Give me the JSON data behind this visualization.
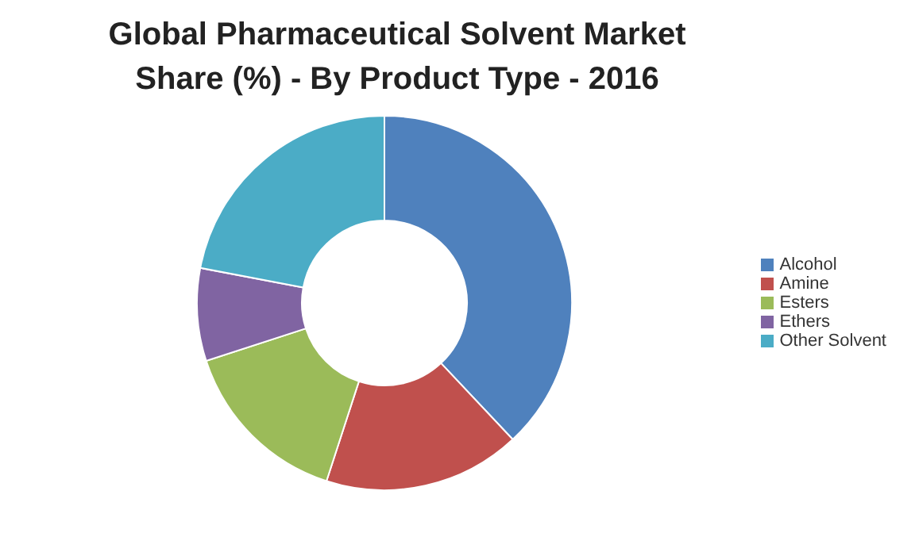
{
  "chart_data": {
    "type": "donut",
    "title": "Global Pharmaceutical Solvent Market Share (%) - By Product Type - 2016",
    "categories": [
      "Alcohol",
      "Amine",
      "Esters",
      "Ethers",
      "Other Solvent"
    ],
    "values": [
      38,
      17,
      15,
      8,
      22
    ],
    "colors": [
      "#4f81bd",
      "#c0504d",
      "#9bbb59",
      "#8064a2",
      "#4bacc6"
    ],
    "legend": "right"
  }
}
